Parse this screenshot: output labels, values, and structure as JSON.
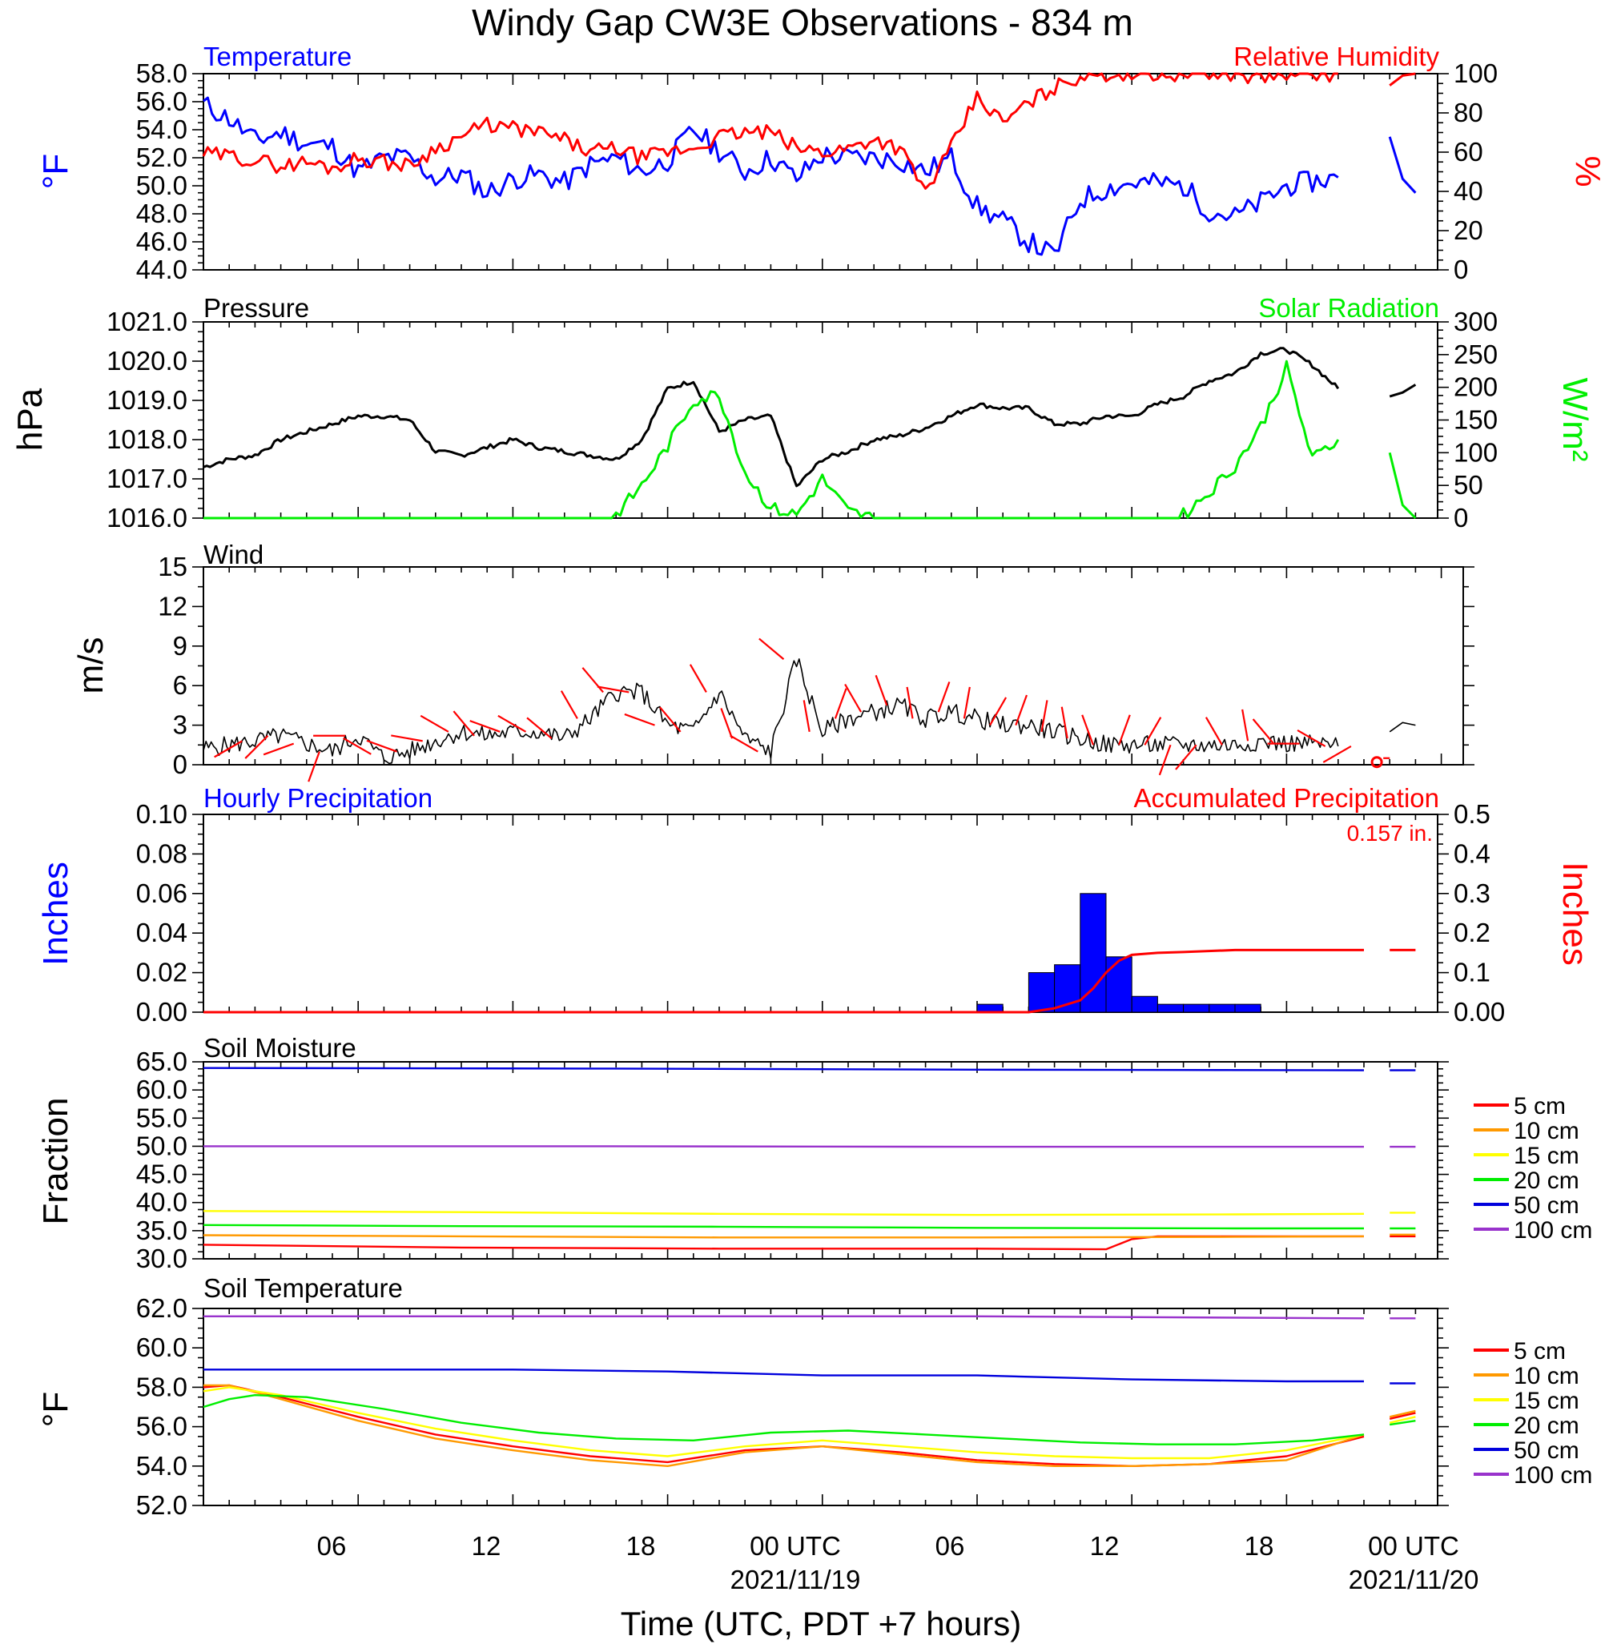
{
  "title": "Windy Gap CW3E Observations - 834 m",
  "xaxis": {
    "label": "Time (UTC, PDT +7 hours)",
    "ticks": [
      "06",
      "12",
      "18",
      "00 UTC",
      "06",
      "12",
      "18",
      "00 UTC"
    ],
    "dates": [
      "2021/11/19",
      "2021/11/20"
    ]
  },
  "colors": {
    "temperature": "#0000ff",
    "humidity": "#ff0000",
    "pressure": "#000000",
    "solar": "#00ee00",
    "wind": "#000000",
    "barb": "#ff0000",
    "precip_bar": "#0000ff",
    "precip_acc": "#ff0000",
    "soil_5": "#ff0000",
    "soil_10": "#ff9900",
    "soil_15": "#ffff00",
    "soil_20": "#00ee00",
    "soil_50": "#0000dd",
    "soil_100": "#9933cc"
  },
  "chart_data": [
    {
      "type": "line",
      "title": "Temperature",
      "title_right": "Relative Humidity",
      "ylabel": "°F",
      "ylabel_right": "%",
      "ylim": [
        44,
        58
      ],
      "ylim_right": [
        0,
        100
      ],
      "yticks": [
        "58.0",
        "56.0",
        "54.0",
        "52.0",
        "50.0",
        "48.0",
        "46.0",
        "44.0"
      ],
      "yticks_right": [
        "100",
        "80",
        "60",
        "40",
        "20",
        "0"
      ],
      "x_hours": [
        0,
        1,
        2,
        3,
        4,
        5,
        6,
        7,
        8,
        9,
        10,
        11,
        12,
        13,
        14,
        15,
        16,
        17,
        18,
        19,
        20,
        21,
        22,
        23,
        24,
        25,
        26,
        27,
        28,
        29,
        30,
        31,
        32,
        33,
        34,
        35,
        36,
        37,
        38,
        39,
        40,
        41,
        42,
        43,
        44
      ],
      "series": [
        {
          "name": "Temperature",
          "axis": "left",
          "values": [
            55.8,
            54.8,
            53.2,
            53.8,
            53.0,
            52.8,
            51.0,
            52.0,
            52.0,
            50.5,
            50.8,
            49.5,
            50.5,
            50.8,
            50.2,
            51.5,
            52.0,
            51.0,
            51.8,
            54.0,
            52.5,
            51.0,
            52.0,
            50.5,
            52.2,
            52.0,
            52.0,
            51.8,
            51.0,
            52.0,
            48.5,
            47.5,
            46.0,
            45.0,
            49.0,
            49.8,
            50.2,
            50.2,
            50.0,
            48.2,
            47.8,
            48.8,
            50.0,
            50.3,
            50.6
          ]
        },
        {
          "name": "Relative Humidity",
          "axis": "right",
          "values": [
            59,
            58,
            56,
            53,
            55,
            52,
            57,
            55,
            53,
            62,
            68,
            74,
            72,
            70,
            66,
            60,
            62,
            57,
            60,
            62,
            68,
            70,
            70,
            62,
            60,
            62,
            67,
            62,
            40,
            62,
            88,
            75,
            85,
            93,
            99,
            100,
            100,
            100,
            100,
            100,
            100,
            98,
            100,
            100,
            100
          ]
        },
        {
          "name": "Temperature",
          "axis": "left",
          "x_hours": [
            46.0,
            46.5,
            47.0
          ],
          "values": [
            53.5,
            50.5,
            49.5
          ]
        },
        {
          "name": "Relative Humidity",
          "axis": "right",
          "x_hours": [
            46.0,
            46.5,
            47.0
          ],
          "values": [
            94,
            99,
            100
          ]
        }
      ]
    },
    {
      "type": "line",
      "title": "Pressure",
      "title_right": "Solar Radiation",
      "ylabel": "hPa",
      "ylabel_right": "W/m²",
      "ylim": [
        1016,
        1021
      ],
      "ylim_right": [
        0,
        300
      ],
      "yticks": [
        "1021.0",
        "1020.0",
        "1019.0",
        "1018.0",
        "1017.0",
        "1016.0"
      ],
      "yticks_right": [
        "300",
        "250",
        "200",
        "150",
        "100",
        "50",
        "0"
      ],
      "x_hours": [
        0,
        1,
        2,
        3,
        4,
        5,
        6,
        7,
        8,
        9,
        10,
        11,
        12,
        13,
        14,
        15,
        16,
        17,
        18,
        19,
        20,
        21,
        22,
        23,
        24,
        25,
        26,
        27,
        28,
        29,
        30,
        31,
        32,
        33,
        34,
        35,
        36,
        37,
        38,
        39,
        40,
        41,
        42,
        43,
        44
      ],
      "series": [
        {
          "name": "Pressure",
          "axis": "left",
          "values": [
            1017.3,
            1017.5,
            1017.6,
            1018.0,
            1018.2,
            1018.4,
            1018.6,
            1018.6,
            1018.5,
            1017.7,
            1017.6,
            1017.8,
            1018.0,
            1017.8,
            1017.7,
            1017.6,
            1017.5,
            1018.0,
            1019.3,
            1019.5,
            1018.2,
            1018.5,
            1018.6,
            1016.8,
            1017.5,
            1017.7,
            1018.0,
            1018.1,
            1018.3,
            1018.6,
            1018.9,
            1018.8,
            1018.8,
            1018.4,
            1018.4,
            1018.6,
            1018.6,
            1018.9,
            1019.1,
            1019.5,
            1019.7,
            1020.2,
            1020.3,
            1019.9,
            1019.3
          ]
        },
        {
          "name": "Solar Radiation",
          "axis": "right",
          "values": [
            0,
            0,
            0,
            0,
            0,
            0,
            0,
            0,
            0,
            0,
            0,
            0,
            0,
            0,
            0,
            0,
            5,
            50,
            110,
            180,
            190,
            70,
            15,
            5,
            60,
            10,
            0,
            0,
            0,
            0,
            0,
            0,
            0,
            0,
            0,
            0,
            0,
            0,
            5,
            40,
            80,
            140,
            230,
            90,
            120
          ]
        },
        {
          "name": "Pressure",
          "axis": "left",
          "x_hours": [
            46.0,
            46.5,
            47.0
          ],
          "values": [
            1019.1,
            1019.2,
            1019.4
          ]
        },
        {
          "name": "Solar Radiation",
          "axis": "right",
          "x_hours": [
            46.0,
            46.5,
            47.0
          ],
          "values": [
            100,
            20,
            0
          ]
        }
      ]
    },
    {
      "type": "line",
      "title": "Wind",
      "ylabel": "m/s",
      "ylim": [
        0,
        15
      ],
      "yticks": [
        "15",
        "12",
        "9",
        "6",
        "3",
        "0"
      ],
      "x_hours": [
        0,
        1,
        2,
        3,
        4,
        5,
        6,
        7,
        8,
        9,
        10,
        11,
        12,
        13,
        14,
        15,
        16,
        17,
        18,
        19,
        20,
        21,
        22,
        23,
        24,
        25,
        26,
        27,
        28,
        29,
        30,
        31,
        32,
        33,
        34,
        35,
        36,
        37,
        38,
        39,
        40,
        41,
        42,
        43,
        44
      ],
      "series": [
        {
          "name": "Wind speed",
          "values": [
            1.2,
            1.5,
            1.8,
            2.2,
            1.6,
            1.0,
            2.2,
            0.5,
            1.0,
            1.8,
            2.5,
            2.2,
            2.5,
            2.5,
            2.0,
            3.5,
            5.5,
            5.5,
            3.0,
            2.5,
            5.5,
            2.0,
            1.0,
            8.0,
            2.5,
            3.5,
            4.0,
            4.5,
            3.5,
            4.0,
            3.5,
            3.0,
            3.0,
            2.5,
            2.0,
            1.5,
            1.5,
            1.5,
            1.5,
            1.5,
            1.5,
            1.8,
            1.6,
            1.6,
            1.4
          ]
        },
        {
          "name": "Wind speed",
          "x_hours": [
            46.0,
            46.5,
            47.0
          ],
          "values": [
            2.5,
            3.2,
            3.0
          ]
        }
      ],
      "barbs": {
        "x_hours": [
          1.5,
          2.5,
          3.5,
          4.5,
          5.5,
          6.5,
          7.5,
          8.5,
          9.5,
          10.5,
          11.5,
          12.5,
          13.5,
          14.5,
          15.5,
          16.5,
          17.5,
          18.5,
          19.5,
          20.5,
          21.5,
          22.5,
          23.5,
          24.5,
          25.5,
          26.5,
          27.5,
          28.5,
          29.5,
          30.5,
          31.5,
          32.5,
          33.5,
          34.5,
          35.5,
          36.5,
          37.5,
          38.5,
          39.5,
          40.5,
          41.5,
          42.5,
          43.5,
          44.5
        ],
        "direction_deg": [
          240,
          225,
          250,
          200,
          270,
          300,
          290,
          280,
          300,
          320,
          290,
          300,
          310,
          330,
          320,
          280,
          290,
          320,
          330,
          340,
          300,
          310,
          350,
          20,
          330,
          340,
          350,
          20,
          10,
          30,
          20,
          10,
          350,
          340,
          20,
          30,
          200,
          220,
          330,
          350,
          320,
          270,
          300,
          240
        ],
        "calm_marker_hour": 45.5
      }
    },
    {
      "type": "bar",
      "title": "Hourly Precipitation",
      "title_right": "Accumulated Precipitation",
      "total_label": "0.157 in.",
      "ylabel": "Inches",
      "ylabel_right": "Inches",
      "ylim": [
        0,
        0.1
      ],
      "ylim_right": [
        0,
        0.5
      ],
      "yticks": [
        "0.10",
        "0.08",
        "0.06",
        "0.04",
        "0.02",
        "0.00"
      ],
      "yticks_right": [
        "0.5",
        "0.4",
        "0.3",
        "0.2",
        "0.1",
        "0.00"
      ],
      "hourly": {
        "start_hours": [
          30,
          32,
          33,
          34,
          35,
          36,
          37,
          38,
          39,
          40
        ],
        "values": [
          0.004,
          0.02,
          0.024,
          0.06,
          0.028,
          0.008,
          0.004,
          0.004,
          0.004,
          0.004
        ]
      },
      "accumulated": {
        "x_hours": [
          0,
          32,
          33,
          34,
          34.5,
          35,
          35.5,
          36,
          37,
          38,
          40,
          42,
          45
        ],
        "values": [
          0,
          0,
          0.01,
          0.03,
          0.06,
          0.1,
          0.13,
          0.145,
          0.15,
          0.152,
          0.157,
          0.157,
          0.157
        ]
      },
      "accumulated_tail": {
        "x_hours": [
          46.0,
          47.0
        ],
        "values": [
          0.157,
          0.157
        ]
      }
    },
    {
      "type": "line",
      "title": "Soil Moisture",
      "ylabel": "Fraction",
      "ylim": [
        30,
        65
      ],
      "yticks": [
        "65.0",
        "60.0",
        "55.0",
        "50.0",
        "45.0",
        "40.0",
        "35.0",
        "30.0"
      ],
      "legend": [
        "5 cm",
        "10 cm",
        "15 cm",
        "20 cm",
        "50 cm",
        "100 cm"
      ],
      "series": [
        {
          "name": "5 cm",
          "x_hours": [
            0,
            10,
            20,
            30,
            35,
            36,
            37,
            45
          ],
          "values": [
            32.5,
            32.0,
            31.8,
            31.8,
            31.7,
            33.5,
            34.0,
            34.0
          ],
          "tail": [
            34.0,
            34.0
          ]
        },
        {
          "name": "10 cm",
          "x_hours": [
            0,
            10,
            20,
            30,
            40,
            45
          ],
          "values": [
            34.2,
            34.0,
            33.8,
            33.8,
            33.9,
            34.0
          ],
          "tail": [
            34.3,
            34.3
          ]
        },
        {
          "name": "15 cm",
          "x_hours": [
            0,
            10,
            20,
            30,
            40,
            45
          ],
          "values": [
            38.5,
            38.3,
            38.0,
            37.8,
            37.9,
            38.0
          ],
          "tail": [
            38.2,
            38.2
          ]
        },
        {
          "name": "20 cm",
          "x_hours": [
            0,
            10,
            20,
            30,
            40,
            45
          ],
          "values": [
            36.0,
            35.8,
            35.7,
            35.5,
            35.4,
            35.4
          ],
          "tail": [
            35.4,
            35.4
          ]
        },
        {
          "name": "50 cm",
          "x_hours": [
            0,
            15,
            30,
            45
          ],
          "values": [
            63.9,
            63.8,
            63.6,
            63.5
          ],
          "tail": [
            63.5,
            63.5
          ]
        },
        {
          "name": "100 cm",
          "x_hours": [
            0,
            15,
            30,
            45
          ],
          "values": [
            50.0,
            50.0,
            49.9,
            49.9
          ],
          "tail": [
            49.9,
            49.9
          ]
        }
      ]
    },
    {
      "type": "line",
      "title": "Soil Temperature",
      "ylabel": "°F",
      "ylim": [
        52,
        62
      ],
      "yticks": [
        "62.0",
        "60.0",
        "58.0",
        "56.0",
        "54.0",
        "52.0"
      ],
      "legend": [
        "5 cm",
        "10 cm",
        "15 cm",
        "20 cm",
        "50 cm",
        "100 cm"
      ],
      "series": [
        {
          "name": "5 cm",
          "x_hours": [
            0,
            1,
            3,
            6,
            9,
            12,
            15,
            18,
            21,
            24,
            27,
            30,
            33,
            36,
            39,
            42,
            45
          ],
          "values": [
            58.0,
            58.1,
            57.5,
            56.5,
            55.6,
            55.0,
            54.5,
            54.2,
            54.8,
            55.0,
            54.7,
            54.3,
            54.1,
            54.0,
            54.1,
            54.5,
            55.5
          ],
          "tail": [
            56.4,
            56.7
          ]
        },
        {
          "name": "10 cm",
          "x_hours": [
            0,
            1,
            3,
            6,
            9,
            12,
            15,
            18,
            21,
            24,
            27,
            30,
            33,
            36,
            39,
            42,
            45
          ],
          "values": [
            58.1,
            58.1,
            57.4,
            56.3,
            55.4,
            54.8,
            54.3,
            54.0,
            54.7,
            55.0,
            54.6,
            54.2,
            54.0,
            54.0,
            54.1,
            54.3,
            55.6
          ],
          "tail": [
            56.5,
            56.8
          ]
        },
        {
          "name": "15 cm",
          "x_hours": [
            0,
            1,
            3,
            6,
            9,
            12,
            15,
            18,
            21,
            24,
            27,
            30,
            33,
            36,
            39,
            42,
            45
          ],
          "values": [
            57.8,
            58.0,
            57.6,
            56.7,
            55.9,
            55.3,
            54.8,
            54.5,
            55.0,
            55.3,
            55.0,
            54.7,
            54.5,
            54.4,
            54.4,
            54.8,
            55.6
          ],
          "tail": [
            56.2,
            56.5
          ]
        },
        {
          "name": "20 cm",
          "x_hours": [
            0,
            1,
            2,
            4,
            7,
            10,
            13,
            16,
            19,
            22,
            25,
            28,
            31,
            34,
            37,
            40,
            43,
            45
          ],
          "values": [
            57.0,
            57.4,
            57.6,
            57.5,
            56.9,
            56.2,
            55.7,
            55.4,
            55.3,
            55.7,
            55.8,
            55.6,
            55.4,
            55.2,
            55.1,
            55.1,
            55.3,
            55.6
          ],
          "tail": [
            56.1,
            56.3
          ]
        },
        {
          "name": "50 cm",
          "x_hours": [
            0,
            6,
            12,
            18,
            24,
            30,
            36,
            42,
            45
          ],
          "values": [
            58.9,
            58.9,
            58.9,
            58.8,
            58.6,
            58.6,
            58.4,
            58.3,
            58.3
          ],
          "tail": [
            58.2,
            58.2
          ]
        },
        {
          "name": "100 cm",
          "x_hours": [
            0,
            15,
            30,
            45
          ],
          "values": [
            61.6,
            61.6,
            61.6,
            61.5
          ],
          "tail": [
            61.5,
            61.5
          ]
        }
      ]
    }
  ]
}
